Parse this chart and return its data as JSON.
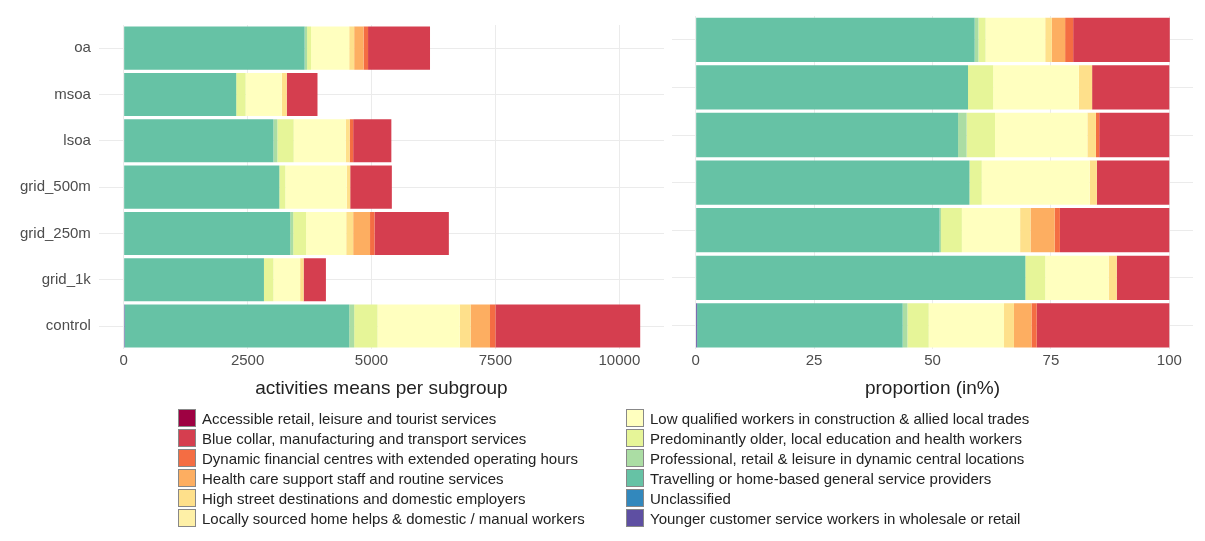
{
  "chart_data": [
    {
      "type": "bar",
      "orientation": "horizontal",
      "stacked": true,
      "xlabel": "activities means per subgroup",
      "categories": [
        "oa",
        "msoa",
        "lsoa",
        "grid_500m",
        "grid_250m",
        "grid_1k",
        "control"
      ],
      "xlim": [
        -500,
        10900
      ],
      "xticks": [
        0,
        2500,
        5000,
        7500,
        10000
      ],
      "grid": true,
      "legend": "bottom",
      "series": [
        {
          "name": "Younger customer service workers in wholesale or retail",
          "color": "#5e4fa2",
          "values": [
            0,
            0,
            0,
            0,
            0,
            0,
            20
          ]
        },
        {
          "name": "Unclassified",
          "color": "#3288bd",
          "values": [
            0,
            0,
            0,
            0,
            0,
            0,
            0
          ]
        },
        {
          "name": "Travelling or home-based general service providers",
          "color": "#66c2a5",
          "values": [
            3650,
            2270,
            3020,
            3140,
            3360,
            2830,
            4530
          ]
        },
        {
          "name": "Professional, retail & leisure in dynamic central locations",
          "color": "#abdda4",
          "values": [
            50,
            0,
            80,
            0,
            60,
            0,
            100
          ]
        },
        {
          "name": "Predominantly older, local education and health workers",
          "color": "#e6f598",
          "values": [
            80,
            190,
            330,
            120,
            260,
            190,
            470
          ]
        },
        {
          "name": "Low qualified workers in construction & allied local trades",
          "color": "#ffffbf",
          "values": [
            770,
            730,
            1050,
            1240,
            810,
            540,
            1660
          ]
        },
        {
          "name": "Locally sourced home helps & domestic / manual workers",
          "color": "#fef0a7",
          "values": [
            0,
            0,
            0,
            0,
            0,
            0,
            0
          ]
        },
        {
          "name": "High street destinations and domestic employers",
          "color": "#fee08b",
          "values": [
            100,
            100,
            80,
            70,
            140,
            70,
            220
          ]
        },
        {
          "name": "Health care support staff and routine services",
          "color": "#fdae61",
          "values": [
            190,
            0,
            0,
            0,
            340,
            0,
            390
          ]
        },
        {
          "name": "Dynamic financial centres with extended operating hours",
          "color": "#f46d43",
          "values": [
            90,
            0,
            70,
            0,
            90,
            0,
            110
          ]
        },
        {
          "name": "Blue collar, manufacturing and transport services",
          "color": "#d53e4f",
          "values": [
            1250,
            620,
            770,
            840,
            1500,
            450,
            2920
          ]
        },
        {
          "name": "Accessible retail, leisure and tourist services",
          "color": "#9e0142",
          "values": [
            0,
            0,
            0,
            0,
            0,
            0,
            0
          ]
        }
      ]
    },
    {
      "type": "bar",
      "orientation": "horizontal",
      "stacked": true,
      "xlabel": "proportion (in%)",
      "categories": [
        null,
        null,
        null,
        null,
        null,
        null,
        null
      ],
      "xlim": [
        -5,
        105
      ],
      "xticks": [
        0,
        25,
        50,
        75,
        100
      ],
      "grid": true,
      "tick_labels": "x",
      "series": [
        {
          "color": "#5e4fa2",
          "values": [
            0,
            0,
            0,
            0,
            0,
            0,
            0.3
          ]
        },
        {
          "color": "#3288bd",
          "values": [
            0,
            0,
            0,
            0,
            0,
            0,
            0
          ]
        },
        {
          "color": "#66c2a5",
          "values": [
            58.9,
            57.5,
            55.4,
            57.8,
            51.5,
            69.6,
            43.4
          ]
        },
        {
          "color": "#abdda4",
          "values": [
            0.8,
            0,
            1.8,
            0,
            0.3,
            0,
            1.0
          ]
        },
        {
          "color": "#e6f598",
          "values": [
            1.5,
            5.3,
            6.0,
            2.6,
            4.4,
            4.2,
            4.5
          ]
        },
        {
          "color": "#ffffbf",
          "values": [
            12.6,
            18.1,
            19.5,
            22.8,
            12.3,
            13.4,
            15.9
          ]
        },
        {
          "color": "#fef0a7",
          "values": [
            0,
            0,
            0,
            0,
            0,
            0,
            0
          ]
        },
        {
          "color": "#fee08b",
          "values": [
            1.4,
            2.8,
            1.8,
            1.5,
            2.2,
            1.7,
            2.1
          ]
        },
        {
          "color": "#fdae61",
          "values": [
            2.8,
            0,
            0,
            0,
            5.1,
            0,
            3.7
          ]
        },
        {
          "color": "#f46d43",
          "values": [
            1.7,
            0,
            0.7,
            0,
            1.1,
            0,
            1.1
          ]
        },
        {
          "color": "#d53e4f",
          "values": [
            20.4,
            16.3,
            14.8,
            15.3,
            23.1,
            11.1,
            28.0
          ]
        },
        {
          "color": "#9e0142",
          "values": [
            0,
            0,
            0,
            0,
            0,
            0,
            0
          ]
        }
      ]
    }
  ]
}
